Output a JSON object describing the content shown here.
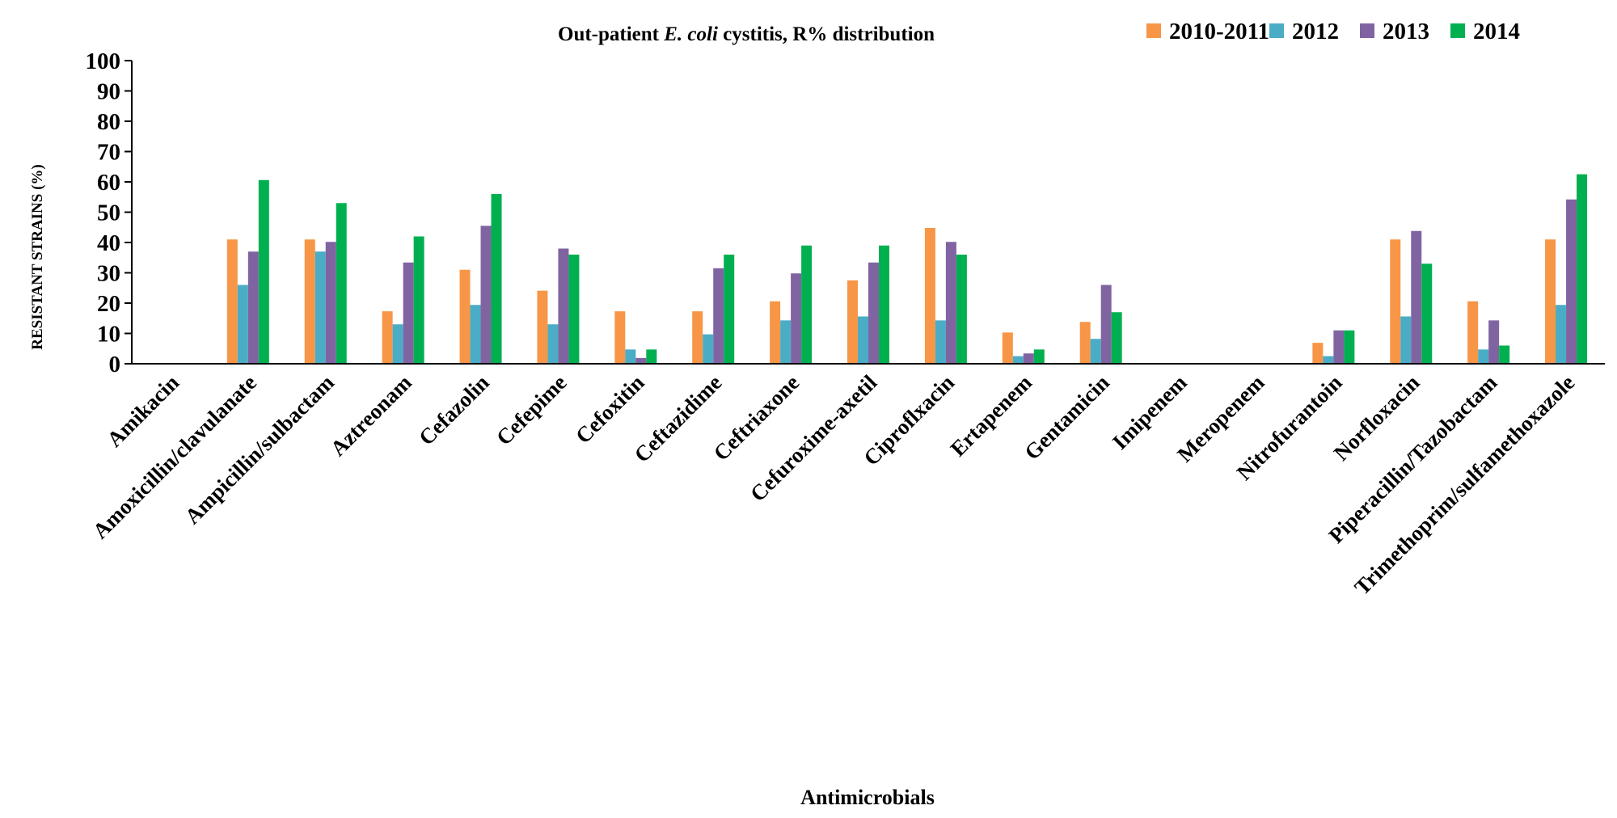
{
  "chart_data": {
    "type": "bar",
    "title": {
      "prefix": "Out-patient ",
      "italic": "E. coli",
      "suffix": " cystitis, R% distribution"
    },
    "xlabel": "Antimicrobials",
    "ylabel": "RESISTANT STRAINS (%)",
    "ylim": [
      0,
      100
    ],
    "yticks": [
      "0",
      "10",
      "20",
      "30",
      "40",
      "50",
      "60",
      "70",
      "80",
      "90",
      "100"
    ],
    "grid": false,
    "legend_position": "top-right",
    "categories": [
      "Amikacin",
      "Amoxicillin/clavulanate",
      "Ampicillin/sulbactam",
      "Aztreonam",
      "Cefazolin",
      "Cefepime",
      "Cefoxitin",
      "Ceftazidime",
      "Ceftriaxone",
      "Cefuroxime-axetil",
      "Ciproflxacin",
      "Ertapenem",
      "Gentamicin",
      "Imipenem",
      "Meropenem",
      "Nitrofurantoin",
      "Norfloxacin",
      "Piperacillin/Tazobactam",
      "Trimethoprim/sulfamethoxazole"
    ],
    "series": [
      {
        "name": "2010-2011",
        "color": "#F79646",
        "values": [
          0,
          41,
          41,
          17.3,
          31,
          24.1,
          17.3,
          17.3,
          20.6,
          27.5,
          44.8,
          10.3,
          13.8,
          0,
          0,
          6.9,
          41,
          20.6,
          41
        ]
      },
      {
        "name": "2012",
        "color": "#4BACC6",
        "values": [
          0,
          26,
          37,
          13,
          19.4,
          13,
          4.7,
          9.7,
          14.3,
          15.6,
          14.3,
          2.5,
          8.2,
          0,
          0,
          2.5,
          15.6,
          4.7,
          19.4
        ]
      },
      {
        "name": "2013",
        "color": "#8064A2",
        "values": [
          0,
          37,
          40.2,
          33.4,
          45.5,
          38,
          1.9,
          31.5,
          29.8,
          33.4,
          40.2,
          3.4,
          26,
          0,
          0,
          11,
          43.8,
          14.3,
          54.2
        ]
      },
      {
        "name": "2014",
        "color": "#00B050",
        "values": [
          0,
          60.6,
          53,
          42,
          56,
          36,
          4.7,
          36,
          39,
          39,
          36,
          4.7,
          17,
          0,
          0,
          11,
          33,
          6,
          62.5
        ]
      }
    ]
  }
}
